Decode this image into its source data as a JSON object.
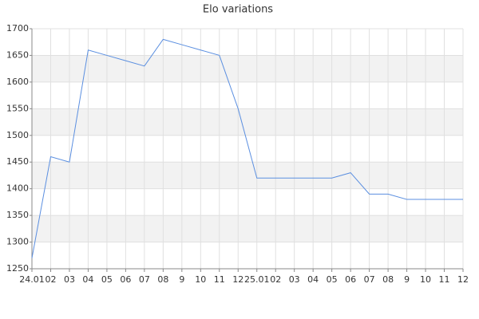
{
  "chart_data": {
    "type": "line",
    "title": "Elo variations",
    "categories": [
      "24.01",
      "02",
      "03",
      "04",
      "05",
      "06",
      "07",
      "08",
      "9",
      "10",
      "11",
      "12",
      "25.01",
      "02",
      "03",
      "04",
      "05",
      "06",
      "07",
      "08",
      "9",
      "10",
      "11",
      "12"
    ],
    "values": [
      1270,
      1460,
      1450,
      1660,
      1650,
      1640,
      1630,
      1680,
      1670,
      1660,
      1650,
      1550,
      1420,
      1420,
      1420,
      1420,
      1420,
      1430,
      1390,
      1390,
      1380,
      1380,
      1380,
      1380
    ],
    "color": "#5b8fe0",
    "ylim": [
      1250,
      1700
    ],
    "yticks": [
      1250,
      1300,
      1350,
      1400,
      1450,
      1500,
      1550,
      1600,
      1650,
      1700
    ],
    "grid": true,
    "band_color": "#f2f2f2"
  }
}
